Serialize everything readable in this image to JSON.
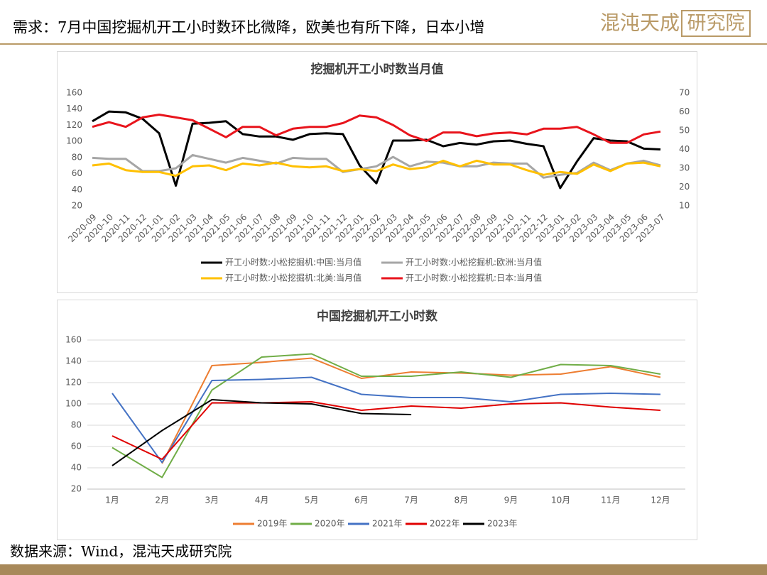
{
  "header": {
    "title": "需求：7月中国挖掘机开工小时数环比微降，欧美也有所下降，日本小增",
    "logo_main": "混沌天成",
    "logo_box": "研究院"
  },
  "footer": {
    "source": "数据来源：Wind，混沌天成研究院"
  },
  "chart_data": [
    {
      "type": "line",
      "title": "挖掘机开工小时数当月值",
      "categories": [
        "2020-09",
        "2020-10",
        "2020-11",
        "2020-12",
        "2021-01",
        "2021-02",
        "2021-03",
        "2021-04",
        "2021-05",
        "2021-06",
        "2021-07",
        "2021-08",
        "2021-09",
        "2021-10",
        "2021-11",
        "2021-12",
        "2022-01",
        "2022-02",
        "2022-03",
        "2022-04",
        "2022-05",
        "2022-06",
        "2022-07",
        "2022-08",
        "2022-09",
        "2022-10",
        "2022-11",
        "2022-12",
        "2023-01",
        "2023-02",
        "2023-03",
        "2023-04",
        "2023-05",
        "2023-06",
        "2023-07"
      ],
      "ylim": [
        20,
        160
      ],
      "yticks": [
        20,
        40,
        60,
        80,
        100,
        120,
        140,
        160
      ],
      "y2lim": [
        10,
        70
      ],
      "y2ticks": [
        10,
        20,
        30,
        40,
        50,
        60,
        70
      ],
      "grid": false,
      "legend": "bottom",
      "series": [
        {
          "name": "开工小时数:小松挖掘机:中国:当月值",
          "color": "#000000",
          "values": [
            125,
            137,
            136,
            128,
            110,
            45,
            122,
            123,
            125,
            109,
            106,
            106,
            102,
            109,
            110,
            109,
            70,
            48,
            101,
            101,
            102,
            94,
            98,
            96,
            100,
            101,
            97,
            94,
            42,
            75,
            104,
            101,
            100,
            91,
            90
          ]
        },
        {
          "name": "开工小时数:小松挖掘机:欧洲:当月值",
          "color": "#a6a6a6",
          "axis": "y2",
          "values": [
            35.5,
            35,
            35,
            28.5,
            28.5,
            30,
            37,
            35,
            33,
            35.5,
            34,
            32.5,
            35.5,
            35,
            35,
            28,
            29.5,
            31,
            36,
            31,
            33.5,
            33,
            31,
            31,
            33,
            32.5,
            32.5,
            25,
            26.5,
            27.5,
            33,
            29,
            32.5,
            34,
            31.5
          ]
        },
        {
          "name": "开工小时数:小松挖掘机:北美:当月值",
          "color": "#ffc000",
          "axis": "y2",
          "values": [
            31.5,
            32.5,
            29,
            28,
            28,
            26,
            31,
            31.5,
            29,
            32.5,
            31.5,
            33,
            31,
            30.5,
            31,
            28.5,
            29.5,
            28.5,
            32,
            29.5,
            30.5,
            34,
            31,
            34,
            32,
            32,
            29,
            26.5,
            28,
            27,
            32,
            28.5,
            32.5,
            33,
            31
          ]
        },
        {
          "name": "开工小时数:小松挖掘机:日本:当月值",
          "color": "#e8141c",
          "axis": "y2",
          "values": [
            52,
            54.5,
            52,
            57,
            58.5,
            57,
            55.5,
            51,
            46.5,
            52,
            52,
            47.5,
            51,
            52,
            52,
            54,
            58,
            57,
            53,
            47.5,
            44.5,
            49,
            49,
            47,
            48.5,
            49,
            48,
            51,
            51,
            52,
            48,
            43.5,
            43.5,
            48,
            49.5
          ]
        }
      ]
    },
    {
      "type": "line",
      "title": "中国挖掘机开工小时数",
      "categories": [
        "1月",
        "2月",
        "3月",
        "4月",
        "5月",
        "6月",
        "7月",
        "8月",
        "9月",
        "10月",
        "11月",
        "12月"
      ],
      "ylim": [
        20,
        160
      ],
      "yticks": [
        20,
        40,
        60,
        80,
        100,
        120,
        140,
        160
      ],
      "grid": true,
      "legend": "bottom",
      "series": [
        {
          "name": "2019年",
          "color": "#ed7d31",
          "values": [
            null,
            44,
            136,
            139,
            143,
            124,
            130,
            129,
            127,
            128,
            135,
            125
          ]
        },
        {
          "name": "2020年",
          "color": "#70ad47",
          "values": [
            59,
            31,
            113,
            144,
            147,
            126,
            126,
            130,
            125,
            137,
            136,
            128
          ]
        },
        {
          "name": "2021年",
          "color": "#4472c4",
          "values": [
            110,
            45,
            122,
            123,
            125,
            109,
            106,
            106,
            102,
            109,
            110,
            109
          ]
        },
        {
          "name": "2022年",
          "color": "#e00000",
          "values": [
            70,
            48,
            101,
            101,
            102,
            94,
            98,
            96,
            100,
            101,
            97,
            94
          ]
        },
        {
          "name": "2023年",
          "color": "#000000",
          "values": [
            42,
            75,
            104,
            101,
            100,
            91,
            90,
            null,
            null,
            null,
            null,
            null
          ]
        }
      ]
    }
  ]
}
